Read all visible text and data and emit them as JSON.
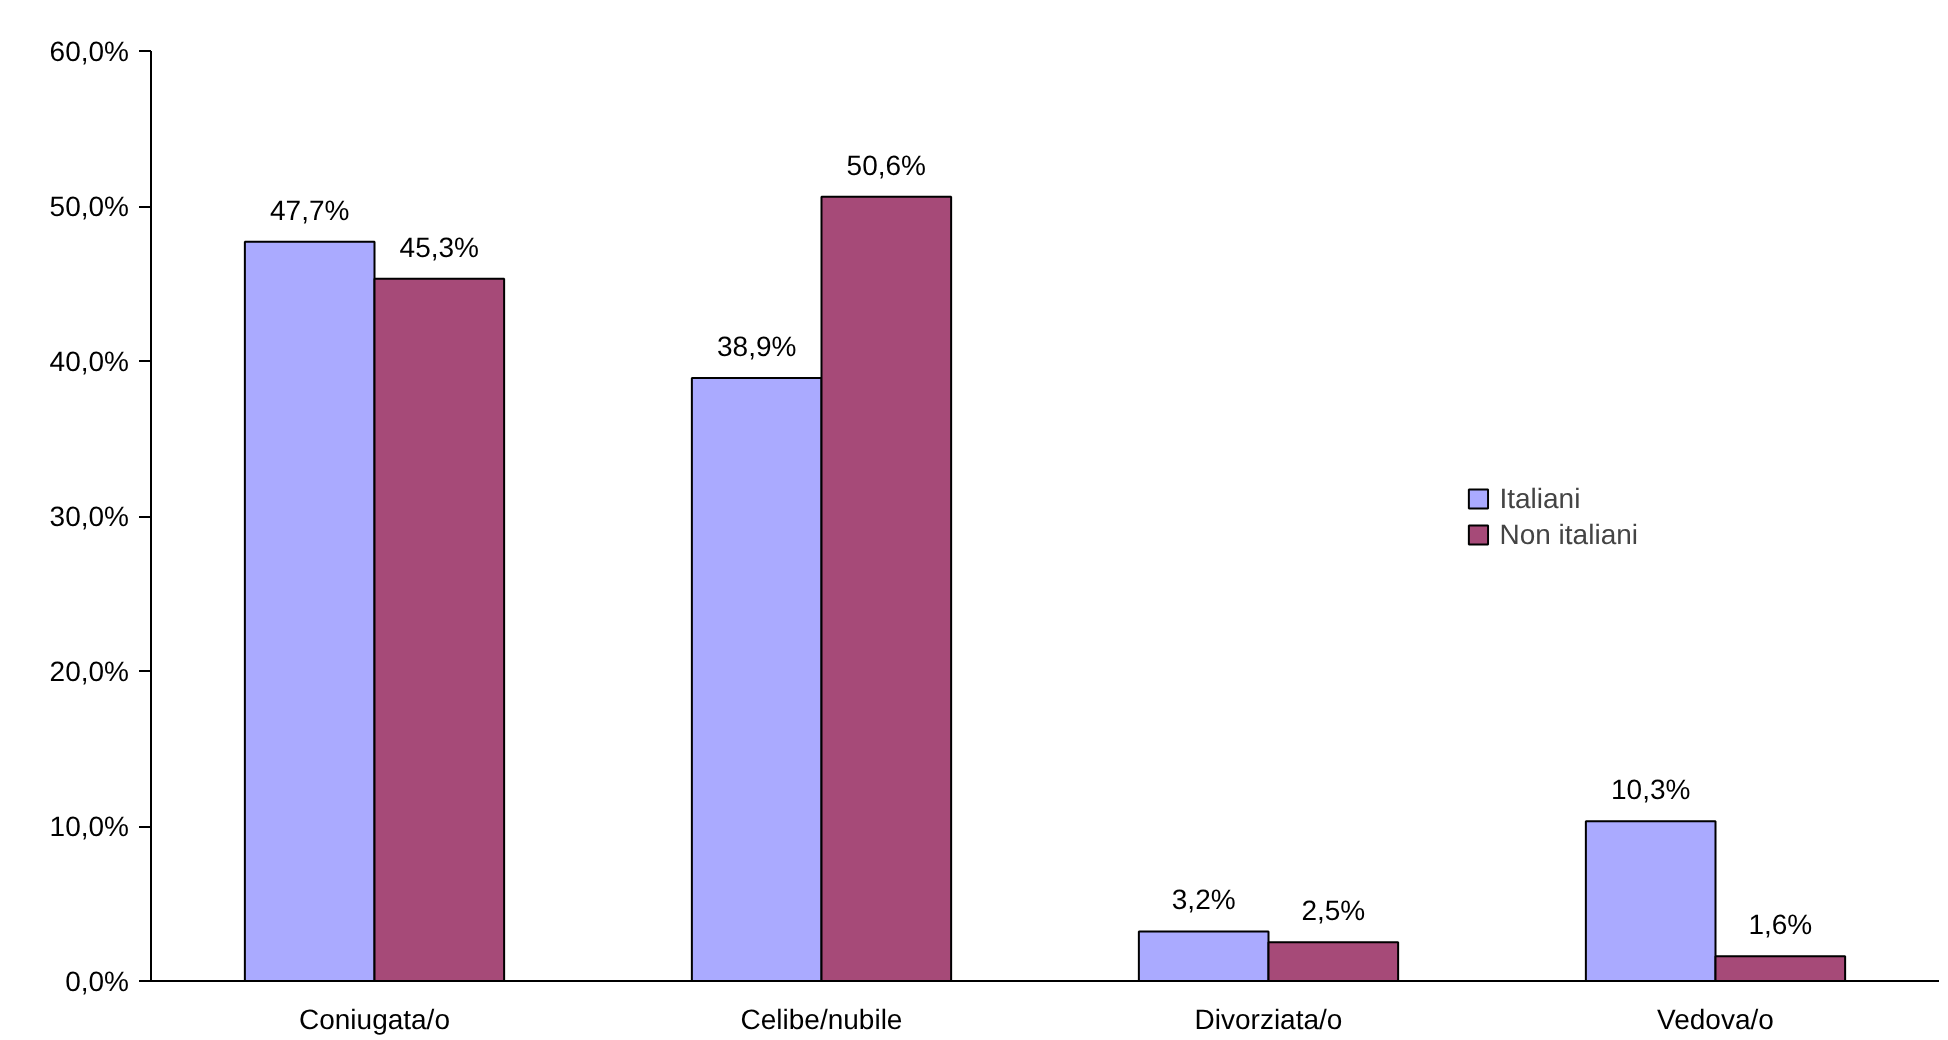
{
  "chart_data": {
    "type": "bar",
    "categories": [
      "Coniugata/o",
      "Celibe/nubile",
      "Divorziata/o",
      "Vedova/o"
    ],
    "series": [
      {
        "name": "Italiani",
        "color": "#aaaaff",
        "values": [
          47.7,
          38.9,
          3.2,
          10.3
        ],
        "value_labels": [
          "47,7%",
          "38,9%",
          "3,2%",
          "10,3%"
        ]
      },
      {
        "name": "Non italiani",
        "color": "#a64a78",
        "values": [
          45.3,
          50.6,
          2.5,
          1.6
        ],
        "value_labels": [
          "45,3%",
          "50,6%",
          "2,5%",
          "1,6%"
        ]
      }
    ],
    "ylim": [
      0,
      60
    ],
    "yticks": [
      {
        "value": 0,
        "label": "0,0%"
      },
      {
        "value": 10,
        "label": "10,0%"
      },
      {
        "value": 20,
        "label": "20,0%"
      },
      {
        "value": 30,
        "label": "30,0%"
      },
      {
        "value": 40,
        "label": "40,0%"
      },
      {
        "value": 50,
        "label": "50,0%"
      },
      {
        "value": 60,
        "label": "60,0%"
      }
    ],
    "grid": false,
    "legend": "right"
  }
}
